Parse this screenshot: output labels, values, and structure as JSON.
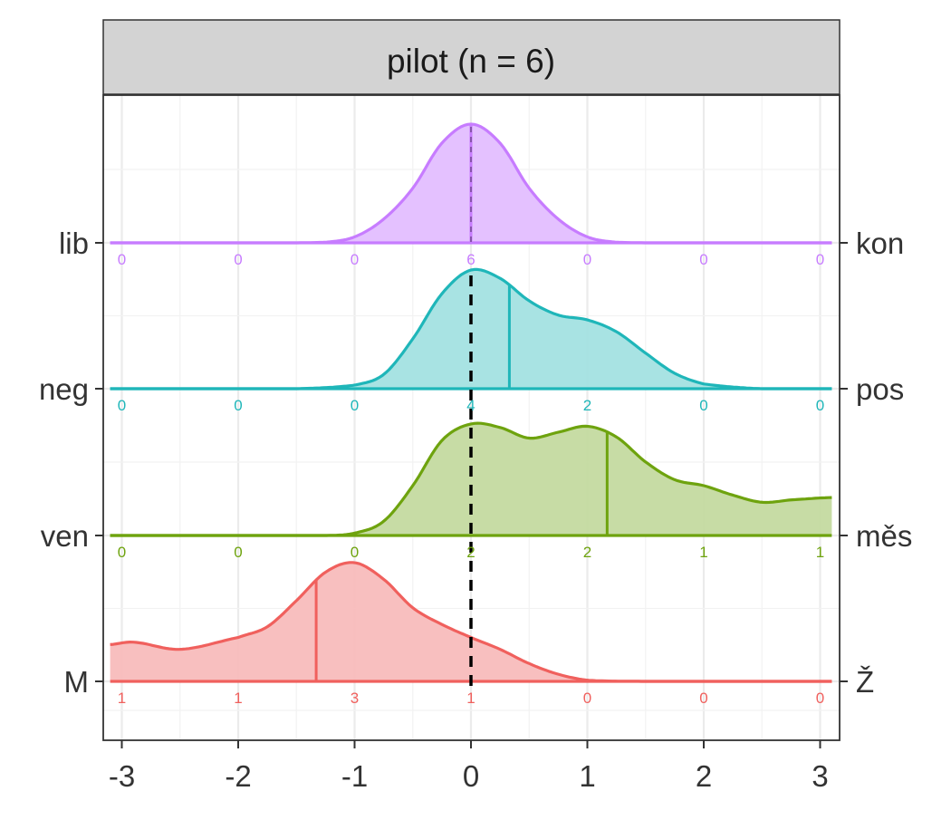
{
  "chart_data": {
    "type": "ridgeline",
    "facet_title": "pilot (n = 6)",
    "xlim": [
      -3.1,
      3.1
    ],
    "x_ticks": [
      -3,
      -2,
      -1,
      0,
      1,
      2,
      3
    ],
    "x_tick_labels": [
      "-3",
      "-2",
      "-1",
      "0",
      "1",
      "2",
      "3"
    ],
    "reference_line_x": 0,
    "grid": true,
    "series": [
      {
        "left_label": "lib",
        "right_label": "kon",
        "color": "#C77CFF",
        "fill": "#E3BEFF",
        "mean": 0,
        "counts": [
          0,
          0,
          0,
          6,
          0,
          0,
          0
        ],
        "count_labels": [
          "0",
          "0",
          "0",
          "6",
          "0",
          "0",
          "0"
        ],
        "density": [
          [
            -3.1,
            0
          ],
          [
            -2.0,
            0
          ],
          [
            -1.25,
            0.005
          ],
          [
            -1.0,
            0.05
          ],
          [
            -0.75,
            0.2
          ],
          [
            -0.5,
            0.46
          ],
          [
            -0.25,
            0.84
          ],
          [
            0,
            1.0
          ],
          [
            0.25,
            0.84
          ],
          [
            0.5,
            0.46
          ],
          [
            0.75,
            0.2
          ],
          [
            1.0,
            0.05
          ],
          [
            1.25,
            0.005
          ],
          [
            2.0,
            0
          ],
          [
            3.1,
            0
          ]
        ]
      },
      {
        "left_label": "neg",
        "right_label": "pos",
        "color": "#1FB6B9",
        "fill": "#A3E1E2",
        "mean": 0.33,
        "counts": [
          0,
          0,
          0,
          4,
          2,
          0,
          0
        ],
        "count_labels": [
          "0",
          "0",
          "0",
          "4",
          "2",
          "0",
          "0"
        ],
        "density": [
          [
            -3.1,
            0
          ],
          [
            -1.5,
            0
          ],
          [
            -1.0,
            0.03
          ],
          [
            -0.75,
            0.12
          ],
          [
            -0.5,
            0.42
          ],
          [
            -0.25,
            0.8
          ],
          [
            0,
            1.0
          ],
          [
            0.25,
            0.93
          ],
          [
            0.5,
            0.74
          ],
          [
            0.75,
            0.62
          ],
          [
            1.0,
            0.58
          ],
          [
            1.25,
            0.48
          ],
          [
            1.5,
            0.3
          ],
          [
            1.75,
            0.13
          ],
          [
            2.0,
            0.04
          ],
          [
            2.5,
            0
          ],
          [
            3.1,
            0
          ]
        ]
      },
      {
        "left_label": "ven",
        "right_label": "měs",
        "color": "#6EA30E",
        "fill": "#C4DAA0",
        "mean": 1.17,
        "counts": [
          0,
          0,
          0,
          2,
          2,
          1,
          1
        ],
        "count_labels": [
          "0",
          "0",
          "0",
          "2",
          "2",
          "1",
          "1"
        ],
        "density": [
          [
            -3.1,
            0
          ],
          [
            -1.25,
            0
          ],
          [
            -1.0,
            0.02
          ],
          [
            -0.75,
            0.12
          ],
          [
            -0.5,
            0.42
          ],
          [
            -0.25,
            0.8
          ],
          [
            0,
            0.94
          ],
          [
            0.25,
            0.91
          ],
          [
            0.5,
            0.82
          ],
          [
            0.75,
            0.87
          ],
          [
            1.0,
            0.92
          ],
          [
            1.25,
            0.83
          ],
          [
            1.5,
            0.62
          ],
          [
            1.75,
            0.47
          ],
          [
            2.0,
            0.42
          ],
          [
            2.25,
            0.34
          ],
          [
            2.5,
            0.28
          ],
          [
            2.75,
            0.3
          ],
          [
            3.1,
            0.32
          ]
        ]
      },
      {
        "left_label": "M",
        "right_label": "Ž",
        "color": "#F0605D",
        "fill": "#F8BCBC",
        "mean": -1.33,
        "counts": [
          1,
          1,
          3,
          1,
          0,
          0,
          0
        ],
        "count_labels": [
          "1",
          "1",
          "3",
          "1",
          "0",
          "0",
          "0"
        ],
        "density": [
          [
            -3.1,
            0.31
          ],
          [
            -2.9,
            0.33
          ],
          [
            -2.5,
            0.27
          ],
          [
            -2.0,
            0.37
          ],
          [
            -1.75,
            0.46
          ],
          [
            -1.5,
            0.68
          ],
          [
            -1.25,
            0.92
          ],
          [
            -1.0,
            1.0
          ],
          [
            -0.75,
            0.86
          ],
          [
            -0.5,
            0.62
          ],
          [
            -0.25,
            0.48
          ],
          [
            0,
            0.37
          ],
          [
            0.25,
            0.27
          ],
          [
            0.5,
            0.15
          ],
          [
            0.75,
            0.06
          ],
          [
            1.0,
            0.01
          ],
          [
            1.5,
            0
          ],
          [
            3.1,
            0
          ]
        ]
      }
    ]
  }
}
